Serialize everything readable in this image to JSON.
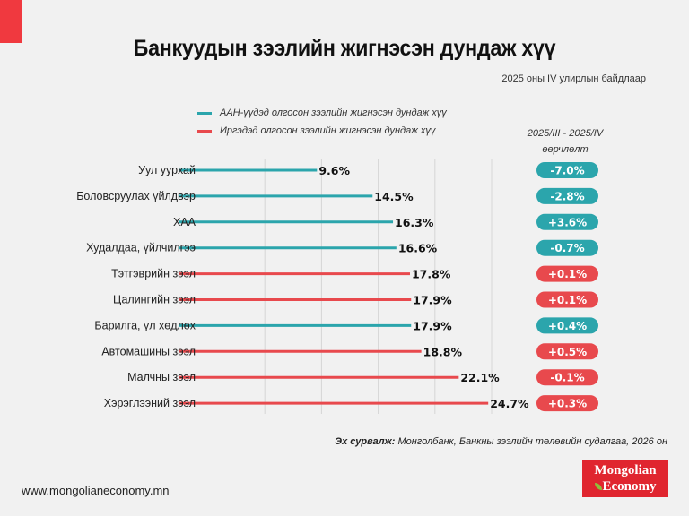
{
  "title": "Банкуудын зээлийн жигнэсэн дундаж хүү",
  "subtitle": "2025 оны IV улирлын байдлаар",
  "change_header": [
    "2025/III - 2025/IV",
    "өөрчлөлт"
  ],
  "source_label": "Эх сурвалж:",
  "source_text": " Монголбанк, Банкны зээлийн төлөвийн судалгаа, 2026 он",
  "website": "www.mongolianeconomy.mn",
  "logo_text": [
    "Mongolian",
    "Economy"
  ],
  "colors": {
    "business": "#2ba5ac",
    "individual": "#e8494d",
    "accent": "#f0393f"
  },
  "chart_data": {
    "type": "bar",
    "orientation": "horizontal",
    "grid": true,
    "xlim": [
      0,
      25
    ],
    "legend": [
      {
        "key": "business",
        "label": "ААН-үүдэд олгосон зээлийн жигнэсэн дундаж хүү"
      },
      {
        "key": "individual",
        "label": "Иргэдэд олгосон зээлийн жигнэсэн дундаж хүү"
      }
    ],
    "rows": [
      {
        "category": "Уул уурхай",
        "value": 9.6,
        "label": "9.6%",
        "series": "business",
        "change": "-7.0%",
        "change_color": "business"
      },
      {
        "category": "Боловсруулах үйлдвэр",
        "value": 14.5,
        "label": "14.5%",
        "series": "business",
        "change": "-2.8%",
        "change_color": "business"
      },
      {
        "category": "ХАА",
        "value": 16.3,
        "label": "16.3%",
        "series": "business",
        "change": "+3.6%",
        "change_color": "business"
      },
      {
        "category": "Худалдаа, үйлчилгээ",
        "value": 16.6,
        "label": "16.6%",
        "series": "business",
        "change": "-0.7%",
        "change_color": "business"
      },
      {
        "category": "Тэтгэврийн зээл",
        "value": 17.8,
        "label": "17.8%",
        "series": "individual",
        "change": "+0.1%",
        "change_color": "individual"
      },
      {
        "category": "Цалингийн зээл",
        "value": 17.9,
        "label": "17.9%",
        "series": "individual",
        "change": "+0.1%",
        "change_color": "individual"
      },
      {
        "category": "Барилга, үл хөдлөх",
        "value": 17.9,
        "label": "17.9%",
        "series": "business",
        "change": "+0.4%",
        "change_color": "business"
      },
      {
        "category": "Автомашины зээл",
        "value": 18.8,
        "label": "18.8%",
        "series": "individual",
        "change": "+0.5%",
        "change_color": "individual"
      },
      {
        "category": "Малчны зээл",
        "value": 22.1,
        "label": "22.1%",
        "series": "individual",
        "change": "-0.1%",
        "change_color": "individual"
      },
      {
        "category": "Хэрэглээний зээл",
        "value": 24.7,
        "label": "24.7%",
        "series": "individual",
        "change": "+0.3%",
        "change_color": "individual"
      }
    ]
  }
}
